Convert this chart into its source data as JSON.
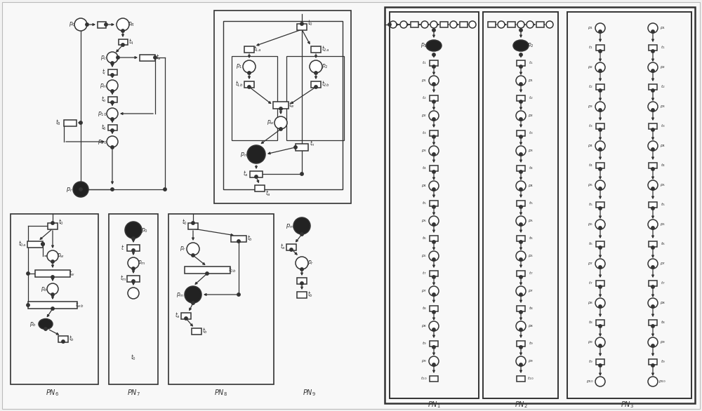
{
  "bg": "#f2f2f2",
  "white": "#ffffff",
  "dark": "#222222",
  "gray": "#555555",
  "lc": "#333333"
}
